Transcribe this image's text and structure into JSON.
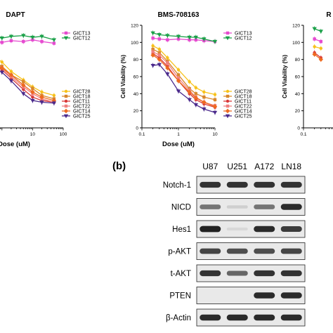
{
  "figure": {
    "panel_b_label": "(b)"
  },
  "chart_data": [
    {
      "type": "line",
      "title": "DAPT",
      "xlabel": "Dose (uM)",
      "ylabel": "",
      "xscale": "log",
      "xticks": [
        "10",
        "100"
      ],
      "xlim": [
        0.3,
        100
      ],
      "ylim": [
        0,
        120
      ],
      "legend_top": [
        "GICT13",
        "GICT12"
      ],
      "legend_bottom": [
        "GICT28",
        "GICT18",
        "GICT11",
        "GICT22",
        "GICT14",
        "GICT25"
      ],
      "series": [
        {
          "name": "GICT13",
          "color": "#e64ad0",
          "marker": "square",
          "x": [
            0.5,
            1,
            2,
            5,
            10,
            20,
            50
          ],
          "y": [
            101,
            100,
            102,
            101,
            103,
            101,
            99
          ]
        },
        {
          "name": "GICT12",
          "color": "#1aa048",
          "marker": "triangle-down",
          "x": [
            0.5,
            1,
            2,
            5,
            10,
            20,
            50
          ],
          "y": [
            107,
            105,
            107,
            108,
            106,
            107,
            103
          ]
        },
        {
          "name": "GICT28",
          "color": "#f7c21a",
          "marker": "circle",
          "x": [
            0.5,
            1,
            2,
            5,
            10,
            20,
            50
          ],
          "y": [
            85,
            77,
            66,
            56,
            48,
            42,
            38
          ]
        },
        {
          "name": "GICT18",
          "color": "#d8872c",
          "marker": "square",
          "x": [
            0.5,
            1,
            2,
            5,
            10,
            20,
            50
          ],
          "y": [
            78,
            72,
            62,
            54,
            46,
            38,
            34
          ]
        },
        {
          "name": "GICT11",
          "color": "#d93838",
          "marker": "circle",
          "x": [
            0.5,
            1,
            2,
            5,
            10,
            20,
            50
          ],
          "y": [
            74,
            68,
            58,
            45,
            36,
            32,
            30
          ]
        },
        {
          "name": "GICT22",
          "color": "#f08080",
          "marker": "square",
          "x": [
            0.5,
            1,
            2,
            5,
            10,
            20,
            50
          ],
          "y": [
            80,
            70,
            60,
            48,
            40,
            34,
            30
          ]
        },
        {
          "name": "GICT14",
          "color": "#ee6a1f",
          "marker": "diamond",
          "x": [
            0.5,
            1,
            2,
            5,
            10,
            20,
            50
          ],
          "y": [
            76,
            70,
            62,
            50,
            42,
            36,
            32
          ]
        },
        {
          "name": "GICT25",
          "color": "#4b2a8c",
          "marker": "triangle-down",
          "x": [
            0.5,
            1,
            2,
            5,
            10,
            20,
            50
          ],
          "y": [
            72,
            65,
            55,
            40,
            32,
            30,
            29
          ]
        }
      ]
    },
    {
      "type": "line",
      "title": "BMS-708163",
      "xlabel": "Dose (uM)",
      "ylabel": "Cell Viability (%)",
      "xscale": "log",
      "xticks": [
        "0.1",
        "1",
        "10"
      ],
      "yticks": [
        "0",
        "20",
        "40",
        "60",
        "80",
        "100",
        "120"
      ],
      "xlim": [
        0.1,
        10
      ],
      "ylim": [
        0,
        120
      ],
      "legend_top": [
        "GICT13",
        "GICT12"
      ],
      "legend_bottom": [
        "GICT28",
        "GICT18",
        "GICT11",
        "GICT22",
        "GICT14",
        "GICT25"
      ],
      "series": [
        {
          "name": "GICT13",
          "color": "#e64ad0",
          "marker": "square",
          "x": [
            0.2,
            0.3,
            0.5,
            1,
            2,
            3,
            5,
            10
          ],
          "y": [
            105,
            104,
            103,
            104,
            103,
            103,
            102,
            101
          ]
        },
        {
          "name": "GICT12",
          "color": "#1aa048",
          "marker": "triangle-down",
          "x": [
            0.2,
            0.3,
            0.5,
            1,
            2,
            3,
            5,
            10
          ],
          "y": [
            111,
            109,
            108,
            107,
            106,
            106,
            104,
            101
          ]
        },
        {
          "name": "GICT28",
          "color": "#f7c21a",
          "marker": "circle",
          "x": [
            0.2,
            0.3,
            0.5,
            1,
            2,
            3,
            5,
            10
          ],
          "y": [
            96,
            92,
            82,
            68,
            54,
            47,
            42,
            39
          ]
        },
        {
          "name": "GICT18",
          "color": "#d8872c",
          "marker": "square",
          "x": [
            0.2,
            0.3,
            0.5,
            1,
            2,
            3,
            5,
            10
          ],
          "y": [
            92,
            88,
            78,
            62,
            46,
            40,
            36,
            33
          ]
        },
        {
          "name": "GICT11",
          "color": "#d93838",
          "marker": "circle",
          "x": [
            0.2,
            0.3,
            0.5,
            1,
            2,
            3,
            5,
            10
          ],
          "y": [
            87,
            82,
            72,
            55,
            40,
            33,
            28,
            24
          ]
        },
        {
          "name": "GICT22",
          "color": "#f08080",
          "marker": "square",
          "x": [
            0.2,
            0.3,
            0.5,
            1,
            2,
            3,
            5,
            10
          ],
          "y": [
            89,
            85,
            76,
            58,
            44,
            36,
            30,
            26
          ]
        },
        {
          "name": "GICT14",
          "color": "#ee6a1f",
          "marker": "diamond",
          "x": [
            0.2,
            0.3,
            0.5,
            1,
            2,
            3,
            5,
            10
          ],
          "y": [
            85,
            80,
            70,
            55,
            42,
            35,
            30,
            25
          ]
        },
        {
          "name": "GICT25",
          "color": "#4b2a8c",
          "marker": "triangle-down",
          "x": [
            0.2,
            0.3,
            0.5,
            1,
            2,
            3,
            5,
            10
          ],
          "y": [
            73,
            74,
            63,
            43,
            33,
            27,
            22,
            18
          ]
        }
      ]
    },
    {
      "type": "line",
      "title": "R",
      "xlabel": "",
      "ylabel": "Cell Viability (%)",
      "xscale": "log",
      "xticks": [
        "0.1"
      ],
      "yticks": [
        "0",
        "20",
        "40",
        "60",
        "80",
        "100",
        "120"
      ],
      "xlim": [
        0.1,
        10
      ],
      "ylim": [
        0,
        120
      ],
      "series": [
        {
          "name": "",
          "color": "#1aa048",
          "marker": "triangle-down",
          "x": [
            0.2,
            0.3
          ],
          "y": [
            116,
            113
          ]
        },
        {
          "name": "",
          "color": "#e64ad0",
          "marker": "square",
          "x": [
            0.2,
            0.3
          ],
          "y": [
            104,
            101
          ]
        },
        {
          "name": "",
          "color": "#d93838",
          "marker": "circle",
          "x": [
            0.2,
            0.3
          ],
          "y": [
            88,
            82
          ]
        },
        {
          "name": "",
          "color": "#f7c21a",
          "marker": "circle",
          "x": [
            0.2,
            0.3
          ],
          "y": [
            95,
            93
          ]
        },
        {
          "name": "",
          "color": "#ee6a1f",
          "marker": "diamond",
          "x": [
            0.2,
            0.3
          ],
          "y": [
            86,
            80
          ]
        }
      ]
    }
  ],
  "western_blot": {
    "columns": [
      "U87",
      "U251",
      "A172",
      "LN18"
    ],
    "rows": [
      {
        "label": "Notch-1",
        "intensity": [
          0.85,
          0.85,
          0.85,
          0.85
        ]
      },
      {
        "label": "NICD",
        "intensity": [
          0.55,
          0.12,
          0.55,
          0.9
        ]
      },
      {
        "label": "Hes1",
        "intensity": [
          0.95,
          0.05,
          0.9,
          0.8
        ]
      },
      {
        "label": "p-AKT",
        "intensity": [
          0.75,
          0.7,
          0.7,
          0.75
        ]
      },
      {
        "label": "t-AKT",
        "intensity": [
          0.85,
          0.6,
          0.85,
          0.85
        ]
      },
      {
        "label": "PTEN",
        "intensity": [
          0.0,
          0.0,
          0.9,
          0.9
        ]
      },
      {
        "label": "β-Actin",
        "intensity": [
          0.9,
          0.9,
          0.9,
          0.9
        ]
      }
    ]
  }
}
